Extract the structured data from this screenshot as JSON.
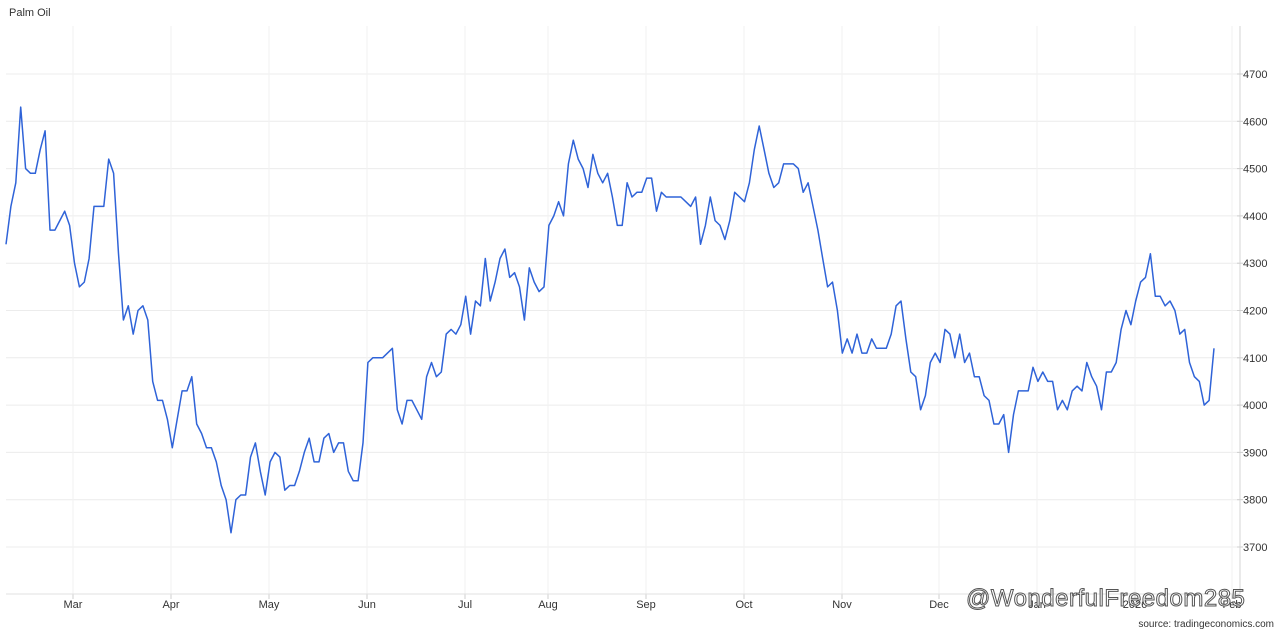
{
  "chart_data": {
    "type": "line",
    "title": "Palm Oil",
    "source": "source: tradingeconomics.com",
    "x_tick_labels": [
      "Mar",
      "Apr",
      "May",
      "Jun",
      "Jul",
      "Aug",
      "Sep",
      "Oct",
      "Nov",
      "Dec",
      "Jan",
      "2026",
      "Feb"
    ],
    "y_ticks": [
      3700,
      3800,
      3900,
      4000,
      4100,
      4200,
      4300,
      4400,
      4500,
      4600,
      4700
    ],
    "ylim": [
      3600,
      4800
    ],
    "y_axis_position": "right",
    "grid": true,
    "series": [
      {
        "color": "#2f63d8",
        "values": [
          4340,
          4420,
          4470,
          4630,
          4500,
          4490,
          4490,
          4540,
          4580,
          4370,
          4370,
          4390,
          4410,
          4380,
          4300,
          4250,
          4260,
          4310,
          4420,
          4420,
          4420,
          4520,
          4490,
          4320,
          4180,
          4210,
          4150,
          4200,
          4210,
          4180,
          4050,
          4010,
          4010,
          3970,
          3910,
          3970,
          4030,
          4030,
          4060,
          3960,
          3940,
          3910,
          3910,
          3880,
          3830,
          3800,
          3730,
          3800,
          3810,
          3810,
          3890,
          3920,
          3860,
          3810,
          3880,
          3900,
          3890,
          3820,
          3830,
          3830,
          3860,
          3900,
          3930,
          3880,
          3880,
          3930,
          3940,
          3900,
          3920,
          3920,
          3860,
          3840,
          3840,
          3920,
          4090,
          4100,
          4100,
          4100,
          4110,
          4120,
          3990,
          3960,
          4010,
          4010,
          3990,
          3970,
          4060,
          4090,
          4060,
          4070,
          4150,
          4160,
          4150,
          4170,
          4230,
          4150,
          4220,
          4210,
          4310,
          4220,
          4260,
          4310,
          4330,
          4270,
          4280,
          4250,
          4180,
          4290,
          4260,
          4240,
          4250,
          4380,
          4400,
          4430,
          4400,
          4510,
          4560,
          4520,
          4500,
          4460,
          4530,
          4490,
          4470,
          4490,
          4440,
          4380,
          4380,
          4470,
          4440,
          4450,
          4450,
          4480,
          4480,
          4410,
          4450,
          4440,
          4440,
          4440,
          4440,
          4430,
          4420,
          4440,
          4340,
          4380,
          4440,
          4390,
          4380,
          4350,
          4390,
          4450,
          4440,
          4430,
          4470,
          4540,
          4590,
          4540,
          4490,
          4460,
          4470,
          4510,
          4510,
          4510,
          4500,
          4450,
          4470,
          4420,
          4370,
          4310,
          4250,
          4260,
          4200,
          4110,
          4140,
          4110,
          4150,
          4110,
          4110,
          4140,
          4120,
          4120,
          4120,
          4150,
          4210,
          4220,
          4140,
          4070,
          4060,
          3990,
          4020,
          4090,
          4110,
          4090,
          4160,
          4150,
          4100,
          4150,
          4090,
          4110,
          4060,
          4060,
          4020,
          4010,
          3960,
          3960,
          3980,
          3900,
          3980,
          4030,
          4030,
          4030,
          4080,
          4050,
          4070,
          4050,
          4050,
          3990,
          4010,
          3990,
          4030,
          4040,
          4030,
          4090,
          4060,
          4040,
          3990,
          4070,
          4070,
          4090,
          4160,
          4200,
          4170,
          4220,
          4260,
          4270,
          4320,
          4230,
          4230,
          4210,
          4220,
          4200,
          4150,
          4160,
          4090,
          4060,
          4050,
          4000,
          4010,
          4120
        ]
      }
    ]
  },
  "watermark": "@WonderfulFreedom285"
}
